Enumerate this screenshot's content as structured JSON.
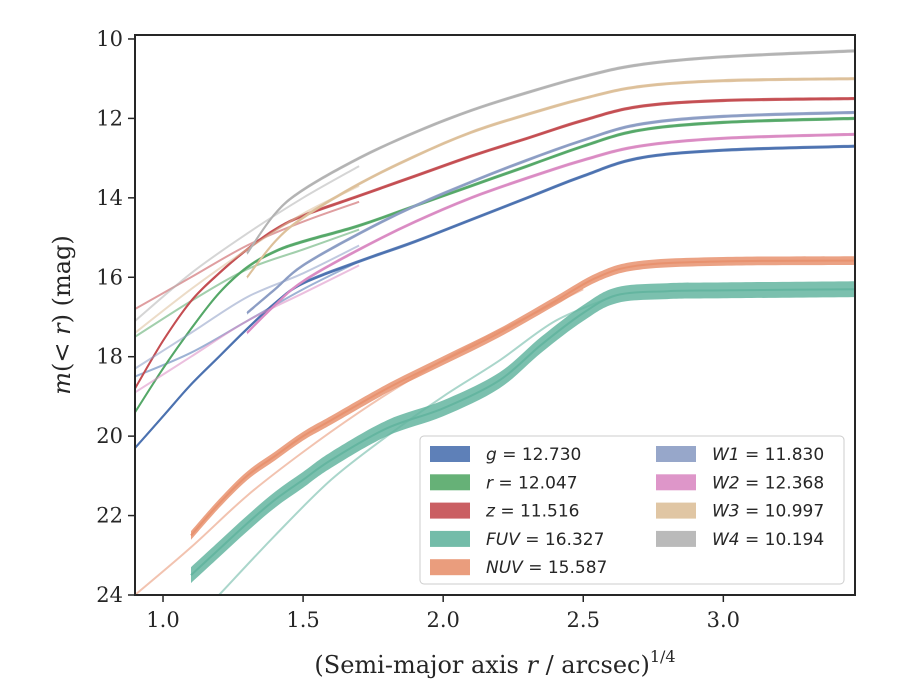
{
  "chart_data": {
    "type": "line",
    "title": "",
    "xlabel": "(Semi-major axis r / arcsec)^1/4",
    "xlabel_parts": {
      "before": "(Semi-major axis ",
      "italic": "r",
      "after": " / arcsec)",
      "sup": "1/4"
    },
    "ylabel": "m(< r) (mag)",
    "ylabel_parts": {
      "italic_m": "m",
      "open": "(",
      "lt": "< ",
      "italic_r": "r",
      "close": ")",
      "unit": " (mag)"
    },
    "xlim": [
      0.9,
      3.47
    ],
    "ylim": [
      24,
      9.9
    ],
    "y_inverted": true,
    "x_ticks": [
      1.0,
      1.5,
      2.0,
      2.5,
      3.0
    ],
    "x_tick_labels": [
      "1.0",
      "1.5",
      "2.0",
      "2.5",
      "3.0"
    ],
    "y_ticks": [
      10,
      12,
      14,
      16,
      18,
      20,
      22,
      24
    ],
    "y_tick_labels": [
      "10",
      "12",
      "14",
      "16",
      "18",
      "20",
      "22",
      "24"
    ],
    "grid": false,
    "legend": {
      "placement": "lower-right",
      "columns": 2
    },
    "series": [
      {
        "name": "g",
        "value": "12.730",
        "color": "#4C72B0",
        "band": 0.08,
        "x": [
          0.9,
          1.0,
          1.1,
          1.2,
          1.3,
          1.4,
          1.5,
          1.7,
          1.9,
          2.1,
          2.3,
          2.5,
          2.7,
          3.0,
          3.47
        ],
        "y": [
          20.3,
          19.5,
          18.7,
          18.0,
          17.3,
          16.65,
          16.15,
          15.6,
          15.1,
          14.55,
          14.0,
          13.45,
          13.0,
          12.8,
          12.7
        ],
        "faint": {
          "x": [
            0.9,
            1.1,
            1.3,
            1.5,
            1.7
          ],
          "y": [
            18.5,
            17.9,
            17.1,
            16.3,
            15.6
          ]
        }
      },
      {
        "name": "r",
        "value": "12.047",
        "color": "#55A868",
        "band": 0.08,
        "x": [
          0.9,
          1.0,
          1.1,
          1.2,
          1.3,
          1.4,
          1.5,
          1.7,
          1.9,
          2.1,
          2.3,
          2.5,
          2.7,
          3.0,
          3.47
        ],
        "y": [
          19.4,
          18.3,
          17.3,
          16.4,
          15.75,
          15.35,
          15.1,
          14.7,
          14.2,
          13.7,
          13.2,
          12.7,
          12.3,
          12.1,
          12.0
        ],
        "faint": {
          "x": [
            0.9,
            1.1,
            1.3,
            1.5,
            1.7
          ],
          "y": [
            17.5,
            16.6,
            15.8,
            15.3,
            14.8
          ]
        }
      },
      {
        "name": "z",
        "value": "11.516",
        "color": "#C44E52",
        "band": 0.08,
        "x": [
          0.9,
          1.0,
          1.1,
          1.2,
          1.3,
          1.4,
          1.5,
          1.7,
          1.9,
          2.1,
          2.3,
          2.5,
          2.7,
          3.0,
          3.47
        ],
        "y": [
          18.8,
          17.6,
          16.6,
          15.9,
          15.3,
          14.8,
          14.45,
          13.95,
          13.45,
          12.95,
          12.5,
          12.05,
          11.7,
          11.55,
          11.5
        ],
        "faint": {
          "x": [
            0.9,
            1.1,
            1.3,
            1.5,
            1.7
          ],
          "y": [
            16.8,
            16.0,
            15.2,
            14.6,
            14.1
          ]
        }
      },
      {
        "name": "FUV",
        "value": "16.327",
        "color": "#64B5A0",
        "band": 0.4,
        "x": [
          1.1,
          1.2,
          1.3,
          1.4,
          1.5,
          1.6,
          1.8,
          2.0,
          2.2,
          2.35,
          2.5,
          2.62,
          2.8,
          3.0,
          3.47
        ],
        "y": [
          23.5,
          22.85,
          22.2,
          21.6,
          21.1,
          20.6,
          19.8,
          19.3,
          18.6,
          17.7,
          16.9,
          16.45,
          16.35,
          16.33,
          16.3
        ],
        "faint": {
          "x": [
            1.2,
            1.4,
            1.6,
            1.8,
            2.0,
            2.2,
            2.4,
            2.6
          ],
          "y": [
            24.0,
            22.5,
            21.1,
            20.0,
            19.0,
            18.1,
            17.1,
            16.5
          ]
        }
      },
      {
        "name": "NUV",
        "value": "15.587",
        "color": "#E8926F",
        "band": 0.22,
        "x": [
          1.1,
          1.2,
          1.3,
          1.4,
          1.5,
          1.6,
          1.8,
          2.0,
          2.2,
          2.4,
          2.55,
          2.7,
          3.0,
          3.47
        ],
        "y": [
          22.5,
          21.7,
          21.0,
          20.5,
          20.0,
          19.6,
          18.8,
          18.1,
          17.4,
          16.6,
          16.0,
          15.7,
          15.6,
          15.58
        ],
        "faint": {
          "x": [
            0.9,
            1.1,
            1.3,
            1.5,
            1.7,
            1.9,
            2.1,
            2.3,
            2.5
          ],
          "y": [
            24.0,
            22.8,
            21.5,
            20.4,
            19.4,
            18.5,
            17.7,
            17.0,
            16.3
          ]
        }
      },
      {
        "name": "W1",
        "value": "11.830",
        "color": "#8C9DC4",
        "band": 0.08,
        "x": [
          1.3,
          1.4,
          1.5,
          1.7,
          1.9,
          2.1,
          2.3,
          2.5,
          2.7,
          3.0,
          3.47
        ],
        "y": [
          16.9,
          16.3,
          15.7,
          14.9,
          14.2,
          13.6,
          13.05,
          12.55,
          12.15,
          11.95,
          11.85
        ],
        "faint": {
          "x": [
            0.9,
            1.1,
            1.3,
            1.5,
            1.7
          ],
          "y": [
            18.3,
            17.4,
            16.5,
            15.9,
            15.2
          ]
        }
      },
      {
        "name": "W2",
        "value": "12.368",
        "color": "#DA8BC3",
        "band": 0.08,
        "x": [
          1.3,
          1.4,
          1.5,
          1.7,
          1.9,
          2.1,
          2.3,
          2.5,
          2.7,
          3.0,
          3.47
        ],
        "y": [
          17.4,
          16.7,
          16.1,
          15.3,
          14.6,
          14.0,
          13.5,
          13.05,
          12.7,
          12.5,
          12.4
        ],
        "faint": {
          "x": [
            0.9,
            1.1,
            1.3,
            1.5,
            1.7
          ],
          "y": [
            18.9,
            18.0,
            17.1,
            16.4,
            15.7
          ]
        }
      },
      {
        "name": "W3",
        "value": "10.997",
        "color": "#DDC09A",
        "band": 0.08,
        "x": [
          1.3,
          1.4,
          1.5,
          1.7,
          1.9,
          2.1,
          2.3,
          2.5,
          2.7,
          3.0,
          3.47
        ],
        "y": [
          16.0,
          15.1,
          14.5,
          13.65,
          12.95,
          12.35,
          11.9,
          11.5,
          11.2,
          11.05,
          11.0
        ],
        "faint": {
          "x": [
            0.9,
            1.1,
            1.3,
            1.5,
            1.7
          ],
          "y": [
            17.4,
            16.3,
            15.3,
            14.4,
            13.7
          ]
        }
      },
      {
        "name": "W4",
        "value": "10.194",
        "color": "#B3B3B3",
        "band": 0.08,
        "x": [
          1.3,
          1.4,
          1.5,
          1.7,
          1.9,
          2.1,
          2.3,
          2.5,
          2.7,
          3.0,
          3.47
        ],
        "y": [
          15.4,
          14.4,
          13.8,
          13.0,
          12.35,
          11.8,
          11.35,
          10.95,
          10.65,
          10.45,
          10.3
        ],
        "faint": {
          "x": [
            0.9,
            1.1,
            1.3,
            1.5,
            1.7
          ],
          "y": [
            17.1,
            15.9,
            14.9,
            14.0,
            13.2
          ]
        }
      }
    ]
  }
}
